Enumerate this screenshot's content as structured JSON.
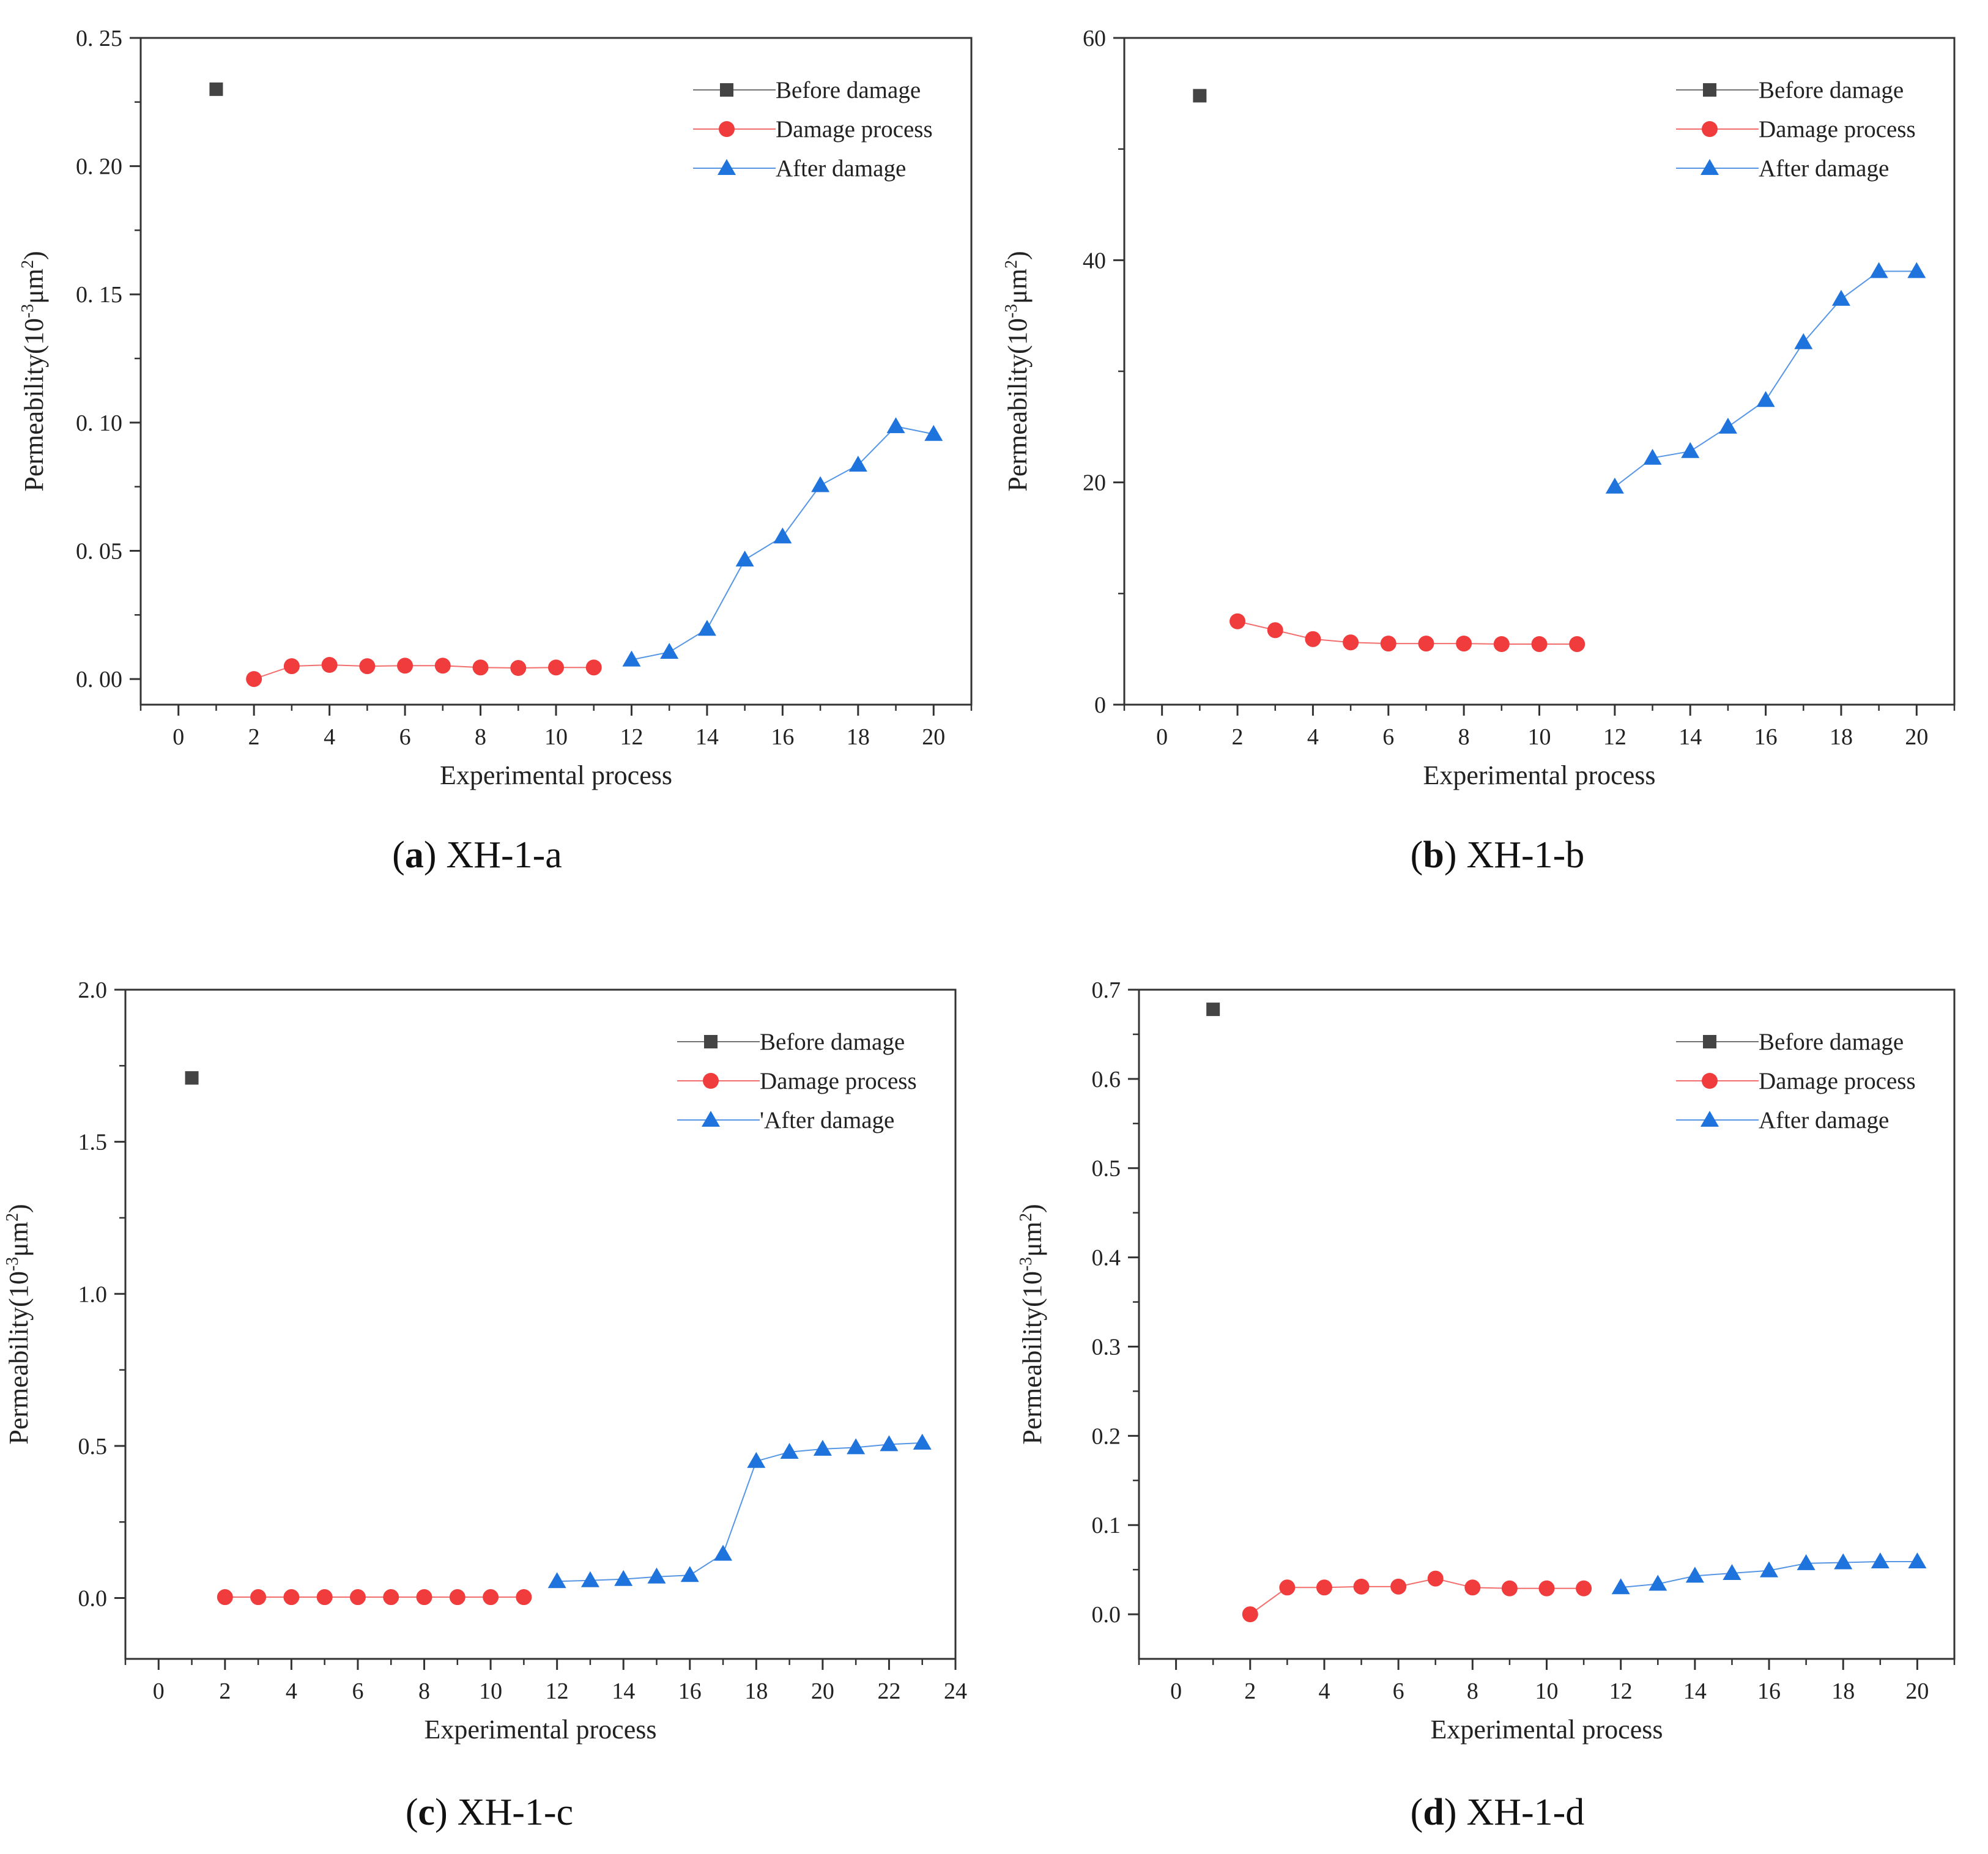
{
  "chart_data": [
    {
      "type": "line",
      "id": "a",
      "caption": {
        "open": "(",
        "letter": "a",
        "close": ")",
        "text": "XH-1-a"
      },
      "xlabel": "Experimental process",
      "ylabel": {
        "main": "Permeability(10",
        "sup1": "-3",
        "mid": "μm",
        "sup2": "2",
        "end": ")"
      },
      "xlim": [
        -1,
        21
      ],
      "ylim": [
        -0.01,
        0.25
      ],
      "xticks": [
        0,
        2,
        4,
        6,
        8,
        10,
        12,
        14,
        16,
        18,
        20
      ],
      "xtick_labels": [
        "0",
        "2",
        "4",
        "6",
        "8",
        "10",
        "12",
        "14",
        "16",
        "18",
        "20"
      ],
      "yticks": [
        0.0,
        0.05,
        0.1,
        0.15,
        0.2,
        0.25
      ],
      "ytick_labels": [
        "0. 00",
        "0. 05",
        "0. 10",
        "0. 15",
        "0. 20",
        "0. 25"
      ],
      "legend_position": "top-right",
      "series": [
        {
          "name": "Before damage",
          "marker": "square",
          "color": "#444444",
          "x": [
            1
          ],
          "y": [
            0.23
          ]
        },
        {
          "name": "Damage process",
          "marker": "circle",
          "color": "#f03c3c",
          "x": [
            2,
            3,
            4,
            5,
            6,
            7,
            8,
            9,
            10,
            11
          ],
          "y": [
            0.0,
            0.005,
            0.0055,
            0.005,
            0.0052,
            0.0052,
            0.0045,
            0.0043,
            0.0045,
            0.0045
          ]
        },
        {
          "name": "After damage",
          "marker": "triangle",
          "color": "#1e73dc",
          "x": [
            12,
            13,
            14,
            15,
            16,
            17,
            18,
            19,
            20
          ],
          "y": [
            0.0075,
            0.0105,
            0.0195,
            0.0465,
            0.0555,
            0.0755,
            0.0835,
            0.0985,
            0.0955
          ]
        }
      ]
    },
    {
      "type": "line",
      "id": "b",
      "caption": {
        "open": "(",
        "letter": "b",
        "close": ")",
        "text": "XH-1-b"
      },
      "xlabel": "Experimental process",
      "ylabel": {
        "main": "Permeability(10",
        "sup1": "-3",
        "mid": "μm",
        "sup2": "2",
        "end": ")"
      },
      "xlim": [
        -1,
        21
      ],
      "ylim": [
        0,
        60
      ],
      "xticks": [
        0,
        2,
        4,
        6,
        8,
        10,
        12,
        14,
        16,
        18,
        20
      ],
      "xtick_labels": [
        "0",
        "2",
        "4",
        "6",
        "8",
        "10",
        "12",
        "14",
        "16",
        "18",
        "20"
      ],
      "yticks": [
        0,
        20,
        40,
        60
      ],
      "ytick_labels": [
        "0",
        "20",
        "40",
        "60"
      ],
      "legend_position": "top-right",
      "series": [
        {
          "name": "Before damage",
          "marker": "square",
          "color": "#444444",
          "x": [
            1
          ],
          "y": [
            54.8
          ]
        },
        {
          "name": "Damage process",
          "marker": "circle",
          "color": "#f03c3c",
          "x": [
            2,
            3,
            4,
            5,
            6,
            7,
            8,
            9,
            10,
            11
          ],
          "y": [
            7.5,
            6.7,
            5.9,
            5.6,
            5.5,
            5.5,
            5.5,
            5.45,
            5.45,
            5.45
          ]
        },
        {
          "name": "After damage",
          "marker": "triangle",
          "color": "#1e73dc",
          "x": [
            12,
            13,
            14,
            15,
            16,
            17,
            18,
            19,
            20
          ],
          "y": [
            19.6,
            22.2,
            22.8,
            25.0,
            27.4,
            32.6,
            36.5,
            39.0,
            39.0
          ]
        }
      ]
    },
    {
      "type": "line",
      "id": "c",
      "caption": {
        "open": "(",
        "letter": "c",
        "close": ")",
        "text": "XH-1-c"
      },
      "xlabel": "Experimental process",
      "ylabel": {
        "main": "Permeability(10",
        "sup1": "-3",
        "mid": "μm",
        "sup2": "2",
        "end": ")"
      },
      "xlim": [
        -1,
        24
      ],
      "ylim": [
        -0.2,
        2.0
      ],
      "xticks": [
        0,
        2,
        4,
        6,
        8,
        10,
        12,
        14,
        16,
        18,
        20,
        22,
        24
      ],
      "xtick_labels": [
        "0",
        "2",
        "4",
        "6",
        "8",
        "10",
        "12",
        "14",
        "16",
        "18",
        "20",
        "22",
        "24"
      ],
      "yticks": [
        0.0,
        0.5,
        1.0,
        1.5,
        2.0
      ],
      "ytick_labels": [
        "0.0",
        "0.5",
        "1.0",
        "1.5",
        "2.0"
      ],
      "legend_position": "top-right",
      "series": [
        {
          "name": "Before damage",
          "marker": "square",
          "color": "#444444",
          "x": [
            1
          ],
          "y": [
            1.71
          ]
        },
        {
          "name": "Damage process",
          "marker": "circle",
          "color": "#f03c3c",
          "x": [
            2,
            3,
            4,
            5,
            6,
            7,
            8,
            9,
            10,
            11
          ],
          "y": [
            0.003,
            0.003,
            0.003,
            0.003,
            0.003,
            0.003,
            0.003,
            0.003,
            0.003,
            0.003
          ]
        },
        {
          "name": "'After damage",
          "marker": "triangle",
          "color": "#1e73dc",
          "x": [
            12,
            13,
            14,
            15,
            16,
            17,
            18,
            19,
            20,
            21,
            22,
            23
          ],
          "y": [
            0.055,
            0.058,
            0.062,
            0.07,
            0.075,
            0.145,
            0.45,
            0.48,
            0.49,
            0.495,
            0.505,
            0.51
          ]
        }
      ]
    },
    {
      "type": "line",
      "id": "d",
      "caption": {
        "open": "(",
        "letter": "d",
        "close": ")",
        "text": "XH-1-d"
      },
      "xlabel": "Experimental process",
      "ylabel": {
        "main": "Permeability(10",
        "sup1": "-3",
        "mid": "μm",
        "sup2": "2",
        "end": ")"
      },
      "xlim": [
        -1,
        21
      ],
      "ylim": [
        -0.05,
        0.7
      ],
      "xticks": [
        0,
        2,
        4,
        6,
        8,
        10,
        12,
        14,
        16,
        18,
        20
      ],
      "xtick_labels": [
        "0",
        "2",
        "4",
        "6",
        "8",
        "10",
        "12",
        "14",
        "16",
        "18",
        "20"
      ],
      "yticks": [
        0.0,
        0.1,
        0.2,
        0.3,
        0.4,
        0.5,
        0.6,
        0.7
      ],
      "ytick_labels": [
        "0.0",
        "0.1",
        "0.2",
        "0.3",
        "0.4",
        "0.5",
        "0.6",
        "0.7"
      ],
      "legend_position": "top-right",
      "series": [
        {
          "name": "Before damage",
          "marker": "square",
          "color": "#444444",
          "x": [
            1
          ],
          "y": [
            0.678
          ]
        },
        {
          "name": "Damage process",
          "marker": "circle",
          "color": "#f03c3c",
          "x": [
            2,
            3,
            4,
            5,
            6,
            7,
            8,
            9,
            10,
            11
          ],
          "y": [
            0.0,
            0.03,
            0.03,
            0.031,
            0.031,
            0.04,
            0.03,
            0.029,
            0.029,
            0.029
          ]
        },
        {
          "name": "After damage",
          "marker": "triangle",
          "color": "#1e73dc",
          "x": [
            12,
            13,
            14,
            15,
            16,
            17,
            18,
            19,
            20
          ],
          "y": [
            0.03,
            0.034,
            0.043,
            0.046,
            0.049,
            0.057,
            0.058,
            0.059,
            0.059
          ]
        }
      ]
    }
  ]
}
